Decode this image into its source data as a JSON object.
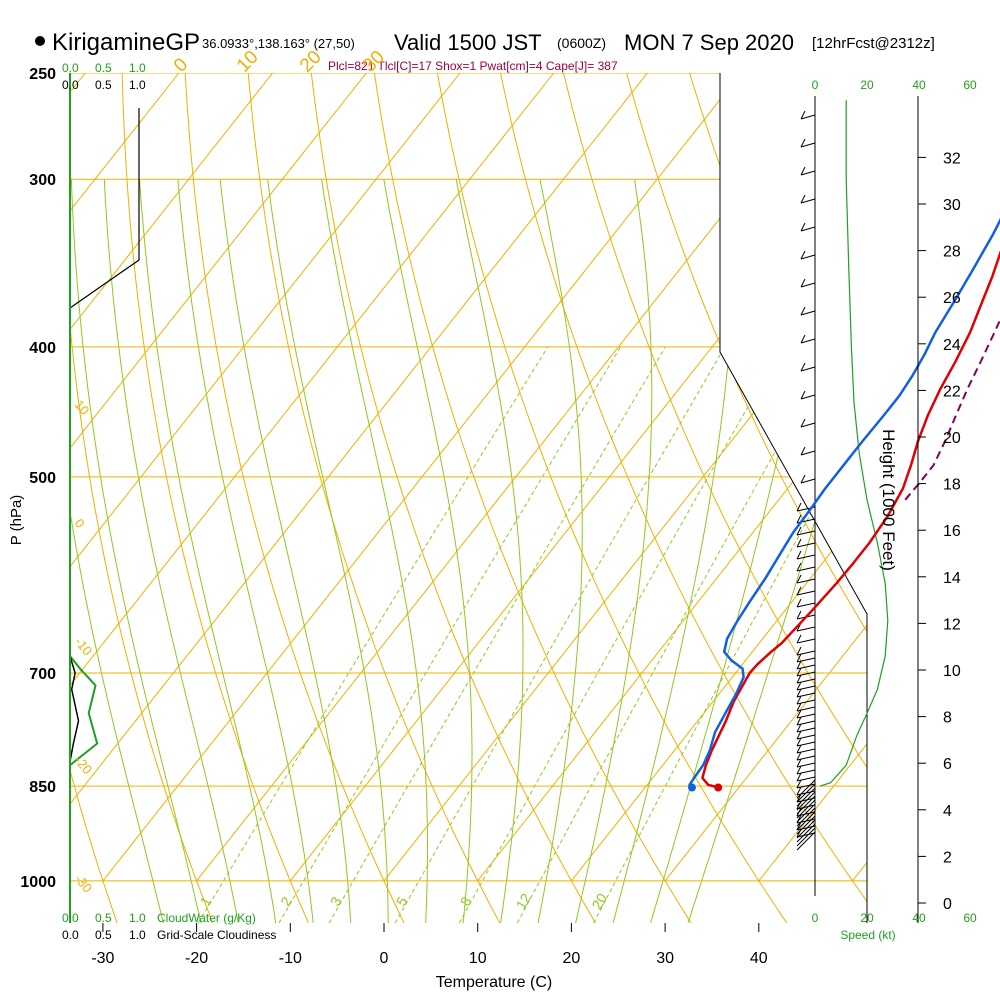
{
  "header": {
    "title": "KirigamineGP",
    "coords": "36.0933°,138.163° (27,50)",
    "valid": "Valid 1500 JST",
    "zulu": "(0600Z)",
    "date": "MON 7 Sep 2020",
    "fcst": "[12hrFcst@2312z]",
    "params": "Plcl=821 Tlcl[C]=17 Shox=1 Pwat[cm]=4 Cape[J]= 387"
  },
  "colors": {
    "isotherm": "#f0b000",
    "dry_adiabat": "#f0b000",
    "moist_adiabat": "#90c820",
    "mixing_ratio": "#90c820",
    "temperature": "#e00000",
    "dewpoint": "#1060e0",
    "parcel": "#800060",
    "cloud": "#20a020",
    "params": "#a00040",
    "wind_speed": "#20a020"
  },
  "chart_data": {
    "type": "line",
    "title": "KirigamineGP",
    "xlabel": "Temperature (C)",
    "ylabel": "P (hPa)",
    "right_label": "Height (1000 Feet)",
    "temp_ticks": [
      -30,
      -20,
      -10,
      0,
      10,
      20,
      30,
      40
    ],
    "pressure_ticks": [
      250,
      300,
      400,
      500,
      700,
      850,
      1000
    ],
    "height_ticks": [
      0,
      2,
      4,
      6,
      8,
      10,
      12,
      14,
      16,
      18,
      20,
      22,
      24,
      26,
      28,
      30,
      32
    ],
    "isotherm_labels": [
      "10",
      "0",
      "-10",
      "-20",
      "-30"
    ],
    "isotherm_label_values": [
      10,
      0,
      -10,
      -20,
      -30
    ],
    "adiabat_labels": [
      "0",
      "10",
      "20",
      "30"
    ],
    "adiabat_label_values": [
      0,
      10,
      20,
      30
    ],
    "mixing_labels": [
      "1",
      "2",
      "3",
      "5",
      "8",
      "12",
      "20"
    ],
    "mixing_label_values": [
      1,
      2,
      3,
      5,
      8,
      12,
      20
    ],
    "cloud_axis": {
      "top_green": [
        "0.0",
        "0.5",
        "1.0"
      ],
      "top_black": [
        "0.0",
        "0.5",
        "1.0"
      ],
      "bottom_green": [
        "0.0",
        "0.5",
        "1.0"
      ],
      "bottom_black": [
        "0.0",
        "0.5",
        "1.0"
      ],
      "cloudwater_label": "CloudWater (g/Kg)",
      "cloudiness_label": "Grid-Scale Cloudiness"
    },
    "speed_axis": {
      "top": [
        "0",
        "20",
        "40",
        "60"
      ],
      "bottom": [
        "0",
        "20",
        "40",
        "60"
      ],
      "label": "Speed (kt)"
    },
    "series": [
      {
        "name": "Temperature",
        "points": [
          [
            27.8,
            852
          ],
          [
            26.5,
            848
          ],
          [
            25.3,
            838
          ],
          [
            24.6,
            820
          ],
          [
            24.0,
            800
          ],
          [
            23.0,
            760
          ],
          [
            22.2,
            735
          ],
          [
            21.5,
            700
          ],
          [
            21.6,
            690
          ],
          [
            22.0,
            675
          ],
          [
            22.4,
            665
          ],
          [
            22.6,
            650
          ],
          [
            22.9,
            628
          ],
          [
            23.2,
            600
          ],
          [
            23.3,
            580
          ],
          [
            23.3,
            560
          ],
          [
            23.0,
            535
          ],
          [
            22.3,
            510
          ],
          [
            21.2,
            490
          ],
          [
            19.9,
            470
          ],
          [
            18.8,
            450
          ],
          [
            17.9,
            430
          ],
          [
            17.2,
            410
          ],
          [
            16.3,
            390
          ],
          [
            15.0,
            370
          ],
          [
            14.0,
            355
          ],
          [
            12.8,
            340
          ],
          [
            11.3,
            320
          ],
          [
            10.0,
            300
          ],
          [
            9.0,
            285
          ],
          [
            8.2,
            272
          ],
          [
            7.6,
            262
          ]
        ]
      },
      {
        "name": "Dewpoint",
        "points": [
          [
            25.0,
            852
          ],
          [
            24.5,
            848
          ],
          [
            24.4,
            835
          ],
          [
            24.3,
            820
          ],
          [
            23.8,
            800
          ],
          [
            22.8,
            775
          ],
          [
            22.3,
            750
          ],
          [
            21.8,
            725
          ],
          [
            21.2,
            705
          ],
          [
            20.4,
            695
          ],
          [
            18.5,
            685
          ],
          [
            17.0,
            675
          ],
          [
            16.2,
            660
          ],
          [
            15.8,
            640
          ],
          [
            15.5,
            620
          ],
          [
            15.2,
            595
          ],
          [
            14.7,
            570
          ],
          [
            14.3,
            550
          ],
          [
            14.2,
            530
          ],
          [
            14.0,
            510
          ],
          [
            14.0,
            490
          ],
          [
            14.0,
            470
          ],
          [
            14.1,
            450
          ],
          [
            14.1,
            435
          ],
          [
            13.8,
            420
          ],
          [
            13.3,
            405
          ],
          [
            12.6,
            390
          ],
          [
            12.0,
            370
          ],
          [
            11.3,
            350
          ],
          [
            10.5,
            330
          ],
          [
            9.4,
            310
          ],
          [
            8.3,
            300
          ],
          [
            6.0,
            290
          ],
          [
            4.5,
            275
          ],
          [
            3.8,
            262
          ]
        ]
      },
      {
        "name": "Parcel",
        "points": [
          [
            23.5,
            520
          ],
          [
            23.6,
            505
          ],
          [
            23.6,
            490
          ],
          [
            22.8,
            470
          ],
          [
            21.8,
            450
          ],
          [
            20.8,
            430
          ],
          [
            19.9,
            410
          ],
          [
            18.9,
            390
          ],
          [
            17.8,
            370
          ],
          [
            16.5,
            350
          ],
          [
            15.0,
            330
          ],
          [
            13.6,
            310
          ],
          [
            12.2,
            295
          ],
          [
            11.0,
            280
          ],
          [
            10.3,
            270
          ],
          [
            9.8,
            262
          ]
        ]
      }
    ],
    "surface": {
      "temperature": 27.8,
      "dewpoint": 25.0,
      "pressure": 852
    },
    "speed_profile": {
      "unit": "kt",
      "points": [
        [
          2,
          850
        ],
        [
          6,
          845
        ],
        [
          12,
          820
        ],
        [
          16,
          780
        ],
        [
          20,
          750
        ],
        [
          24,
          720
        ],
        [
          27,
          680
        ],
        [
          28,
          640
        ],
        [
          27,
          600
        ],
        [
          24,
          560
        ],
        [
          20,
          520
        ],
        [
          17,
          480
        ],
        [
          15,
          440
        ],
        [
          14,
          400
        ],
        [
          13,
          350
        ],
        [
          12,
          300
        ],
        [
          12,
          262
        ]
      ]
    }
  }
}
